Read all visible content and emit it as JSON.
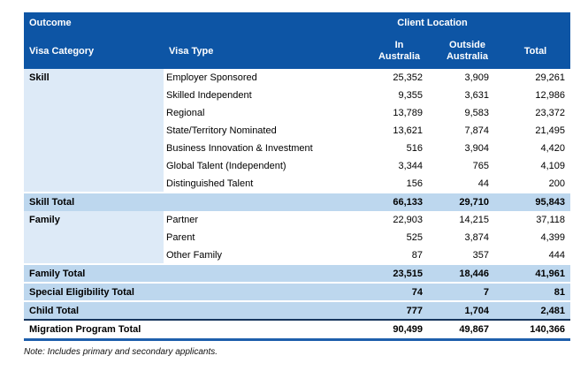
{
  "table": {
    "header": {
      "outcome": "Outcome",
      "client_location": "Client Location",
      "visa_category": "Visa Category",
      "visa_type": "Visa Type",
      "in_australia": "In Australia",
      "outside_australia": "Outside Australia",
      "total": "Total"
    },
    "skill": {
      "category": "Skill",
      "rows": [
        {
          "type": "Employer Sponsored",
          "in": "25,352",
          "out": "3,909",
          "total": "29,261"
        },
        {
          "type": "Skilled Independent",
          "in": "9,355",
          "out": "3,631",
          "total": "12,986"
        },
        {
          "type": "Regional",
          "in": "13,789",
          "out": "9,583",
          "total": "23,372"
        },
        {
          "type": "State/Territory Nominated",
          "in": "13,621",
          "out": "7,874",
          "total": "21,495"
        },
        {
          "type": "Business Innovation & Investment",
          "in": "516",
          "out": "3,904",
          "total": "4,420"
        },
        {
          "type": "Global Talent (Independent)",
          "in": "3,344",
          "out": "765",
          "total": "4,109"
        },
        {
          "type": "Distinguished Talent",
          "in": "156",
          "out": "44",
          "total": "200"
        }
      ],
      "total_row": {
        "label": "Skill Total",
        "in": "66,133",
        "out": "29,710",
        "total": "95,843"
      }
    },
    "family": {
      "category": "Family",
      "rows": [
        {
          "type": "Partner",
          "in": "22,903",
          "out": "14,215",
          "total": "37,118"
        },
        {
          "type": "Parent",
          "in": "525",
          "out": "3,874",
          "total": "4,399"
        },
        {
          "type": "Other Family",
          "in": "87",
          "out": "357",
          "total": "444"
        }
      ],
      "total_row": {
        "label": "Family Total",
        "in": "23,515",
        "out": "18,446",
        "total": "41,961"
      }
    },
    "special_total": {
      "label": "Special Eligibility Total",
      "in": "74",
      "out": "7",
      "total": "81"
    },
    "child_total": {
      "label": "Child Total",
      "in": "777",
      "out": "1,704",
      "total": "2,481"
    },
    "grand_total": {
      "label": "Migration Program Total",
      "in": "90,499",
      "out": "49,867",
      "total": "140,366"
    }
  },
  "note": "Note: Includes primary and secondary applicants.",
  "colors": {
    "header_blue": "#0D55A5",
    "category_light_blue": "#DDEAF7",
    "total_band_blue": "#BDD7EE",
    "grand_top_line": "#17365D",
    "grand_bottom_line": "#1E5FAC"
  }
}
